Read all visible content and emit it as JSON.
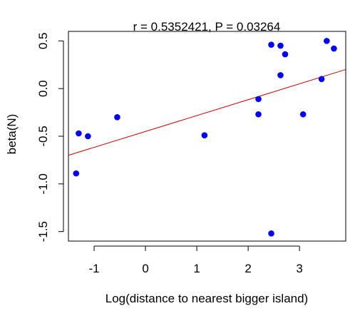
{
  "chart_data": {
    "type": "scatter",
    "title": "r = 0.5352421, P = 0.03264",
    "xlabel": "Log(distance to nearest bigger island)",
    "ylabel": "beta(N)",
    "xlim": [
      -1.5,
      3.9
    ],
    "ylim": [
      -1.6,
      0.6
    ],
    "xticks": [
      -1,
      0,
      1,
      2,
      3
    ],
    "xtick_labels": [
      "-1",
      "0",
      "1",
      "2",
      "3"
    ],
    "yticks": [
      -1.5,
      -1.0,
      -0.5,
      0.0,
      0.5
    ],
    "ytick_labels": [
      "-1.5",
      "-1.0",
      "-0.5",
      "0.0",
      "0.5"
    ],
    "grid": false,
    "point_color": "#0000ff",
    "points": [
      {
        "x": -1.35,
        "y": -0.89
      },
      {
        "x": -1.3,
        "y": -0.47
      },
      {
        "x": -1.12,
        "y": -0.5
      },
      {
        "x": -0.55,
        "y": -0.3
      },
      {
        "x": 1.15,
        "y": -0.49
      },
      {
        "x": 2.2,
        "y": -0.11
      },
      {
        "x": 2.2,
        "y": -0.27
      },
      {
        "x": 2.45,
        "y": 0.46
      },
      {
        "x": 2.45,
        "y": -1.52
      },
      {
        "x": 2.63,
        "y": 0.45
      },
      {
        "x": 2.63,
        "y": 0.14
      },
      {
        "x": 2.72,
        "y": 0.36
      },
      {
        "x": 3.07,
        "y": -0.27
      },
      {
        "x": 3.43,
        "y": 0.1
      },
      {
        "x": 3.53,
        "y": 0.5
      },
      {
        "x": 3.67,
        "y": 0.42
      }
    ],
    "fit_line": {
      "color": "#cc0000",
      "x": [
        -1.5,
        3.9
      ],
      "y": [
        -0.7,
        0.2
      ]
    }
  }
}
